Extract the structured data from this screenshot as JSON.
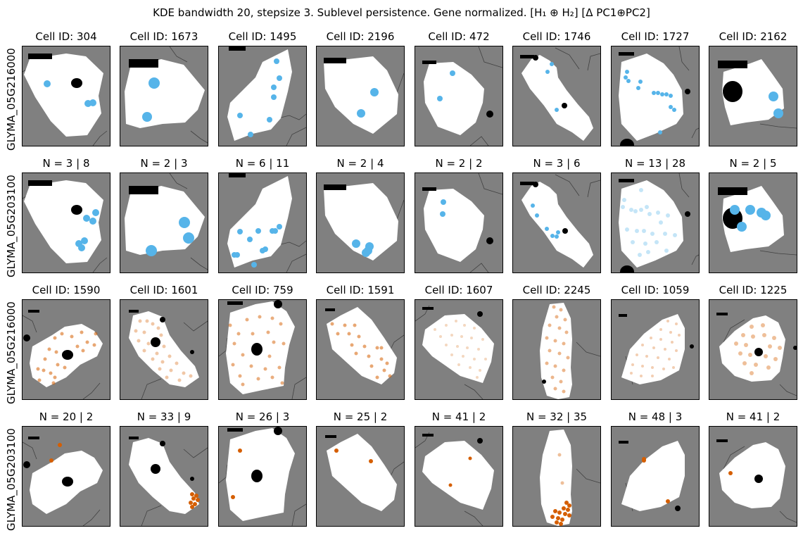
{
  "figure": {
    "suptitle": "KDE bandwidth 20, stepsize 3. Sublevel persistence. Gene normalized. [H₁ ⊕ H₂] [Δ PC1⊕PC2]",
    "colors": {
      "background": "#808080",
      "cell": "#ffffff",
      "nucleus": "#000000",
      "blue": "#56b4e9",
      "orange": "#d55e00",
      "boundary": "#404040"
    }
  },
  "rows": [
    {
      "gene": "GLYMA_05G216000",
      "titles": [
        "Cell ID: 304",
        "Cell ID: 1673",
        "Cell ID: 1495",
        "Cell ID: 2196",
        "Cell ID: 472",
        "Cell ID: 1746",
        "Cell ID: 1727",
        "Cell ID: 2162"
      ]
    },
    {
      "gene": "GLYMA_05G203100",
      "titles": [
        "N = 3 | 8",
        "N = 2 | 3",
        "N = 6 | 11",
        "N = 2 | 4",
        "N = 2 | 2",
        "N = 3 | 6",
        "N = 13 | 28",
        "N = 2 | 5"
      ]
    },
    {
      "gene": "GLYMA_05G216000",
      "titles": [
        "Cell ID: 1590",
        "Cell ID: 1601",
        "Cell ID: 759",
        "Cell ID: 1591",
        "Cell ID: 1607",
        "Cell ID: 2245",
        "Cell ID: 1059",
        "Cell ID: 1225"
      ]
    },
    {
      "gene": "GLYMA_05G203100",
      "titles": [
        "N = 20 | 2",
        "N = 33 | 9",
        "N = 26 | 3",
        "N = 25 | 2",
        "N = 41 | 2",
        "N = 32 | 35",
        "N = 48 | 3",
        "N = 41 | 2"
      ]
    }
  ]
}
